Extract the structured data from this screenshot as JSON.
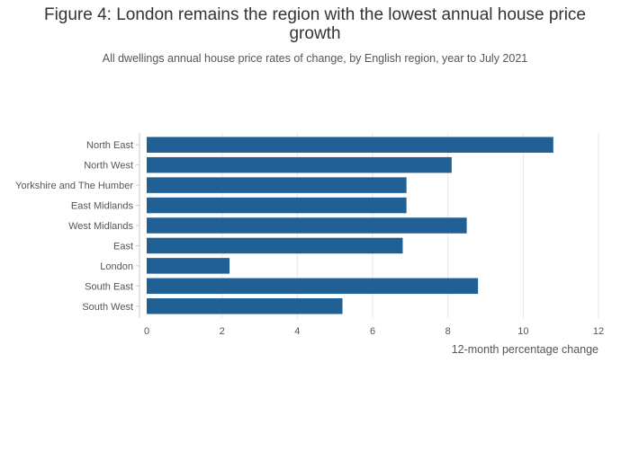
{
  "chart_data": {
    "type": "bar",
    "orientation": "horizontal",
    "title_line1": "Figure 4: London remains the region with the lowest annual house price",
    "title_line2": "growth",
    "subtitle": "All dwellings annual house price rates of change, by English region, year to July 2021",
    "xlabel": "12-month percentage change",
    "ylabel": "",
    "xlim": [
      0,
      12
    ],
    "xticks": [
      0,
      2,
      4,
      6,
      8,
      10,
      12
    ],
    "grid": true,
    "categories": [
      "North East",
      "North West",
      "Yorkshire and The Humber",
      "East Midlands",
      "West Midlands",
      "East",
      "London",
      "South East",
      "South West"
    ],
    "values": [
      10.8,
      8.1,
      6.9,
      6.9,
      8.5,
      6.8,
      2.2,
      8.8,
      5.2
    ],
    "bar_color": "#206095"
  }
}
